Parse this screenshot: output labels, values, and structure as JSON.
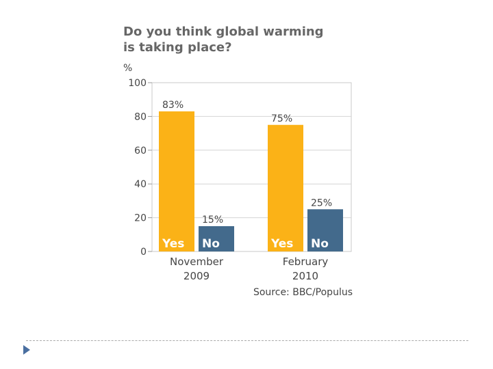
{
  "chart_data": {
    "type": "bar",
    "title_lines": [
      "Do you think global warming",
      "is taking place?"
    ],
    "unit_label": "%",
    "ylim": [
      0,
      100
    ],
    "y_ticks": [
      0,
      20,
      40,
      60,
      80,
      100
    ],
    "grid": true,
    "groups": [
      {
        "category_lines": [
          "November",
          "2009"
        ],
        "bars": [
          {
            "label": "Yes",
            "value": 83,
            "data_label": "83%",
            "color": "#fbb217"
          },
          {
            "label": "No",
            "value": 15,
            "data_label": "15%",
            "color": "#436a8c"
          }
        ]
      },
      {
        "category_lines": [
          "February",
          "2010"
        ],
        "bars": [
          {
            "label": "Yes",
            "value": 75,
            "data_label": "75%",
            "color": "#fbb217"
          },
          {
            "label": "No",
            "value": 25,
            "data_label": "25%",
            "color": "#436a8c"
          }
        ]
      }
    ],
    "source": "Source: BBC/Populus"
  },
  "slide": {
    "bullet_icon": "triangle-bullet-icon",
    "bullet_color": "#4a6fa0"
  }
}
